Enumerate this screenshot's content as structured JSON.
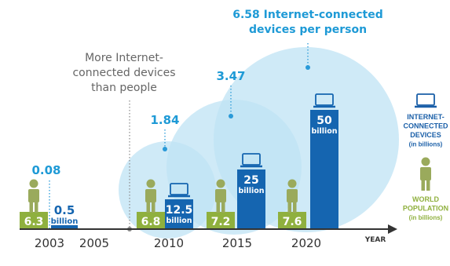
{
  "colors": {
    "circle": "#bfe3f4",
    "device_bar": "#1565b0",
    "population_bar": "#8fb03e",
    "person": "#9aaa5c",
    "ratio_text": "#1e9ad6",
    "legend_blue": "#1a5fa8",
    "legend_green": "#8fb03e",
    "axis": "#333333",
    "dotted": "#2a9ad8",
    "note_text": "#666666"
  },
  "chart_data": {
    "type": "bar",
    "categories": [
      "2003",
      "2005",
      "2010",
      "2015",
      "2020"
    ],
    "x_axis_label": "YEAR",
    "series": [
      {
        "legend_label": [
          "WORLD",
          "POPULATION",
          "(in billions)"
        ],
        "values": [
          6.3,
          null,
          6.8,
          7.2,
          7.6
        ],
        "labels": [
          "6.3",
          "",
          "6.8",
          "7.2",
          "7.6"
        ]
      },
      {
        "legend_label": [
          "INTERNET-",
          "CONNECTED",
          "DEVICES",
          "(in billions)"
        ],
        "values": [
          0.5,
          null,
          12.5,
          25,
          50
        ],
        "labels": [
          [
            "0.5",
            "billion"
          ],
          null,
          [
            "12.5",
            "billion"
          ],
          [
            "25",
            "billion"
          ],
          [
            "50",
            "billion"
          ]
        ]
      }
    ],
    "devices_per_person": [
      {
        "year": "2003",
        "value": 0.08,
        "label": "0.08"
      },
      {
        "year": "2010",
        "value": 1.84,
        "label": "1.84"
      },
      {
        "year": "2015",
        "value": 3.47,
        "label": "3.47"
      },
      {
        "year": "2020",
        "value": 6.58,
        "label": "6.58 Internet-connected",
        "label2": "devices per person"
      }
    ],
    "annotations": [
      {
        "year": "2005",
        "text": [
          "More Internet-",
          "connected devices",
          "than people"
        ]
      }
    ]
  }
}
